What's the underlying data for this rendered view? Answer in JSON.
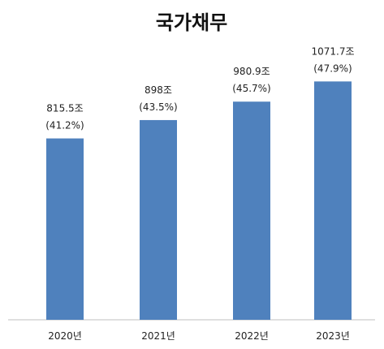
{
  "chart_data": {
    "type": "bar",
    "title": "국가채무",
    "categories": [
      "2020년",
      "2021년",
      "2022년",
      "2023년"
    ],
    "series": [
      {
        "values": [
          815.5,
          898,
          980.9,
          1071.7
        ],
        "value_labels": [
          "815.5조",
          "898조",
          "980.9조",
          "1071.7조"
        ],
        "ratio_labels": [
          "(41.2%)",
          "(43.5%)",
          "(45.7%)",
          "(47.9%)"
        ]
      }
    ],
    "ylim": [
      0,
      1200
    ],
    "grid": false,
    "bar_color": "#4f81bd",
    "axis_color": "#bfbfbf"
  }
}
